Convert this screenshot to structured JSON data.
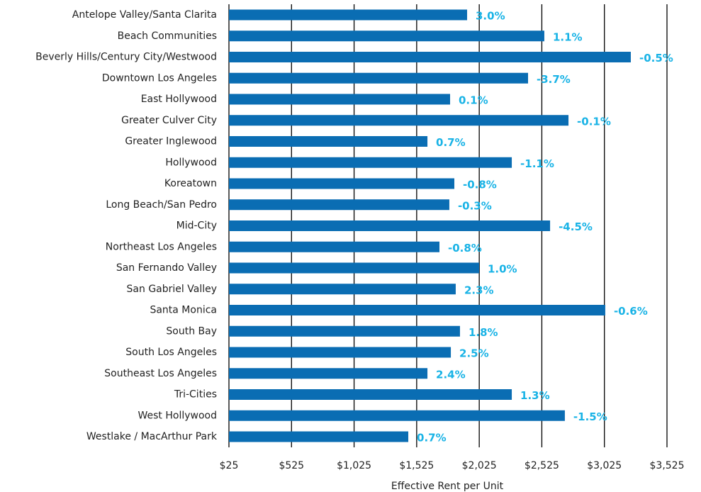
{
  "chart_data": {
    "type": "bar",
    "orientation": "horizontal",
    "x_label": "Effective Rent per Unit",
    "categories": [
      "Antelope Valley/Santa Clarita",
      "Beach Communities",
      "Beverly Hills/Century City/Westwood",
      "Downtown Los Angeles",
      "East Hollywood",
      "Greater Culver City",
      "Greater Inglewood",
      "Hollywood",
      "Koreatown",
      "Long Beach/San Pedro",
      "Mid-City",
      "Northeast Los Angeles",
      "San Fernando Valley",
      "San Gabriel Valley",
      "Santa Monica",
      "South Bay",
      "South Los Angeles",
      "Southeast Los Angeles",
      "Tri-Cities",
      "West Hollywood",
      "Westlake / MacArthur Park"
    ],
    "values": [
      1928,
      2545,
      3236,
      2415,
      1792,
      2738,
      1611,
      2285,
      1826,
      1786,
      2591,
      1707,
      2024,
      1837,
      3032,
      1871,
      1798,
      1611,
      2285,
      2709,
      1458
    ],
    "annotations": [
      "3.0%",
      "1.1%",
      "-0.5%",
      "-3.7%",
      "0.1%",
      "-0.1%",
      "0.7%",
      "-1.1%",
      "-0.8%",
      "-0.3%",
      "-4.5%",
      "-0.8%",
      "1.0%",
      "2.3%",
      "-0.6%",
      "1.8%",
      "2.5%",
      "2.4%",
      "1.3%",
      "-1.5%",
      "0.7%"
    ],
    "color": "#0a6db3",
    "annotation_color": "#19b3e6",
    "xlim": [
      25,
      3525
    ],
    "xticks": [
      {
        "value": 25,
        "label": "$25"
      },
      {
        "value": 525,
        "label": "$525"
      },
      {
        "value": 1025,
        "label": "$1,025"
      },
      {
        "value": 1525,
        "label": "$1,525"
      },
      {
        "value": 2025,
        "label": "$2,025"
      },
      {
        "value": 2525,
        "label": "$2,525"
      },
      {
        "value": 3025,
        "label": "$3,025"
      },
      {
        "value": 3525,
        "label": "$3,525"
      }
    ],
    "grid": true
  }
}
